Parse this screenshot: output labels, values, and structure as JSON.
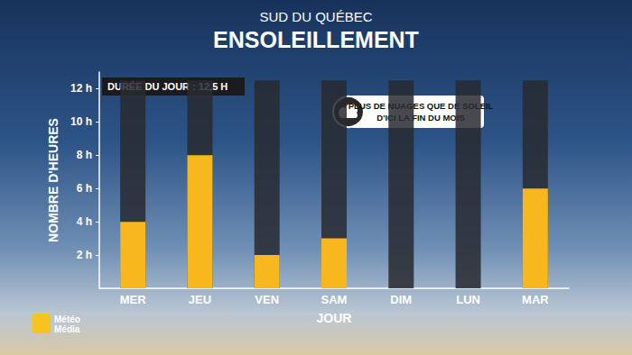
{
  "chart_data": {
    "type": "bar",
    "subtitle": "SUD DU QUÉBEC",
    "title": "ENSOLEILLEMENT",
    "x_label": "JOUR",
    "y_label": "NOMBRE D'HEURES",
    "categories": [
      "MER",
      "JEU",
      "VEN",
      "SAM",
      "DIM",
      "LUN",
      "MAR"
    ],
    "values": [
      4,
      8,
      2,
      3,
      0,
      0,
      6
    ],
    "color": "#f7b71d",
    "day_length": {
      "value": 12.5,
      "label": "DURÉE DU JOUR : 12,5 H"
    },
    "annotation": [
      "PLUS DE NUAGES QUE DE SOLEIL",
      "D'ICI LA FIN DU MOIS"
    ],
    "logo": [
      "Météo",
      "Média"
    ],
    "ylim": [
      0,
      13
    ],
    "yticks": [
      {
        "value": 2,
        "label": "2 h"
      },
      {
        "value": 4,
        "label": "4 h"
      },
      {
        "value": 6,
        "label": "6 h"
      },
      {
        "value": 8,
        "label": "8 h"
      },
      {
        "value": 10,
        "label": "10 h"
      },
      {
        "value": 12,
        "label": "12 h"
      }
    ],
    "grid": false
  }
}
